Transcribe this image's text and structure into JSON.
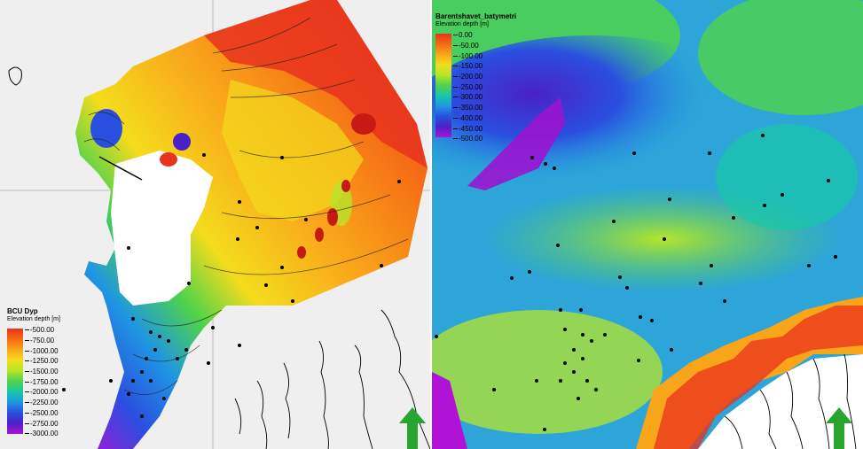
{
  "left_map": {
    "legend": {
      "title": "BCU Dyp",
      "subtitle": "Elevation depth [m]",
      "ticks": [
        "-500.00",
        "-750.00",
        "-1000.00",
        "-1250.00",
        "-1500.00",
        "-1750.00",
        "-2000.00",
        "-2250.00",
        "-2500.00",
        "-2750.00",
        "-3000.00"
      ]
    },
    "north_arrow_icon": "north-arrow-icon"
  },
  "right_map": {
    "legend": {
      "title": "Barentshavet_batymetri",
      "subtitle": "Elevation depth [m]",
      "ticks": [
        "0.00",
        "-50.00",
        "-100.00",
        "-150.00",
        "-200.00",
        "-250.00",
        "-300.00",
        "-350.00",
        "-400.00",
        "-450.00",
        "-500.00"
      ]
    },
    "north_arrow_icon": "north-arrow-icon"
  },
  "colors": {
    "ramp": [
      "#e8321e",
      "#f56a14",
      "#f9a51a",
      "#f4dc1c",
      "#b7e52a",
      "#4fd34a",
      "#18c7a8",
      "#1f96e2",
      "#2a4fe0",
      "#4a21c6",
      "#b012d6"
    ]
  }
}
